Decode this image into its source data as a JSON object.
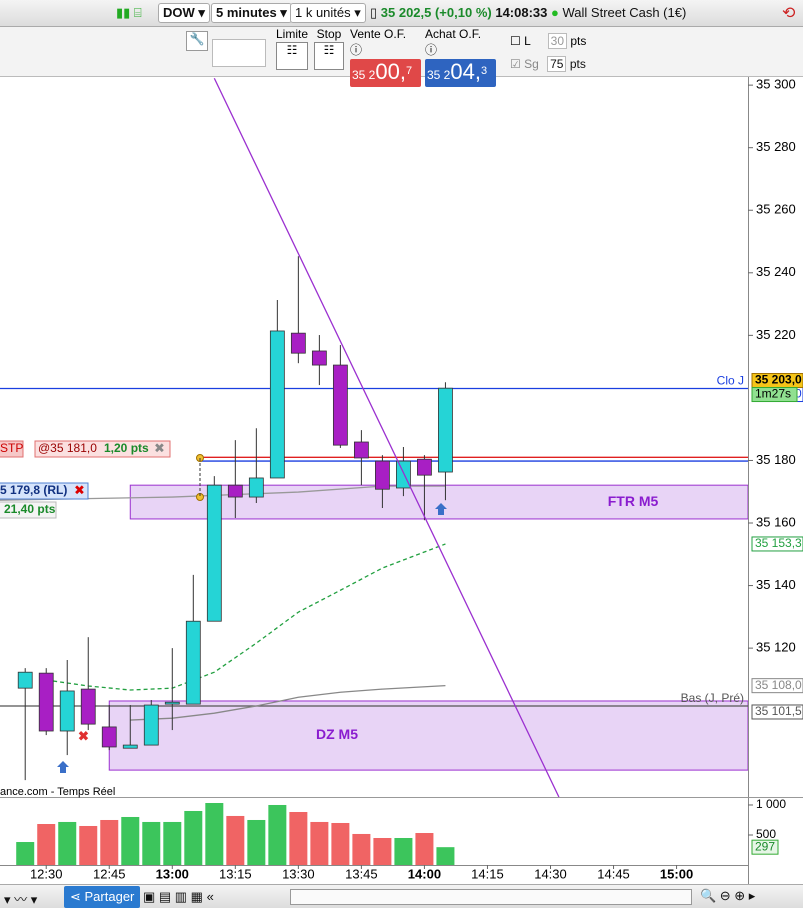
{
  "toolbar": {
    "instrument": "DOW",
    "timeframe": "5 minutes",
    "quantity": "1 k unités",
    "price": "35 202,5 (+0,10 %)",
    "time": "14:08:33",
    "market": "Wall Street Cash (1€)"
  },
  "order_panel": {
    "limit": "Limite",
    "stop": "Stop",
    "sell_label": "Vente O.F.",
    "sell_prefix": "35 2",
    "sell_main": "00,",
    "sell_sup": "7",
    "buy_label": "Achat O.F.",
    "buy_prefix": "35 2",
    "buy_main": "04,",
    "buy_sup": "3",
    "l_label": "L",
    "l_value": "30",
    "l_unit": "pts",
    "sg_label": "Sg",
    "sg_value": "75",
    "sg_unit": "pts"
  },
  "source": "ance.com - Temps Réel",
  "bottom_toolbar": {
    "share": "Partager"
  },
  "chart_data": {
    "type": "candlestick",
    "x": [
      "12:25",
      "12:30",
      "12:35",
      "12:40",
      "12:45",
      "12:50",
      "12:55",
      "13:00",
      "13:05",
      "13:10",
      "13:15",
      "13:20",
      "13:25",
      "13:30",
      "13:35",
      "13:40",
      "13:45",
      "13:50",
      "13:55",
      "14:00",
      "14:05"
    ],
    "open": [
      35107.2,
      35112.0,
      35093.5,
      35106.9,
      35094.8,
      35088.0,
      35089.0,
      35102.1,
      35102.1,
      35128.6,
      35172.1,
      35168.3,
      35174.4,
      35220.7,
      35215.0,
      35210.5,
      35185.9,
      35179.8,
      35171.2,
      35180.4,
      35176.3
    ],
    "high": [
      35113.6,
      35113.6,
      35116.2,
      35123.5,
      35101.8,
      35101.8,
      35103.4,
      35120.0,
      35143.4,
      35175.0,
      35186.5,
      35190.3,
      35231.3,
      35245.3,
      35220.1,
      35216.9,
      35189.7,
      35181.7,
      35184.3,
      35181.7,
      35205.0
    ],
    "low": [
      35077.8,
      35092.2,
      35085.8,
      35093.8,
      35087.4,
      35088.0,
      35089.0,
      35093.8,
      35102.1,
      35128.6,
      35161.6,
      35166.4,
      35174.4,
      35211.1,
      35204.1,
      35184.0,
      35172.1,
      35164.8,
      35168.6,
      35160.9,
      35167.3
    ],
    "close": [
      35112.3,
      35093.5,
      35106.3,
      35095.7,
      35088.4,
      35089.0,
      35101.8,
      35102.7,
      35128.6,
      35172.1,
      35168.3,
      35174.4,
      35221.4,
      35214.3,
      35210.5,
      35184.9,
      35180.8,
      35170.8,
      35179.8,
      35175.3,
      35203.1
    ],
    "up_color": "#25d4d6",
    "down_color": "#a81fc4",
    "xlim": [
      "12:19",
      "15:17"
    ],
    "xticks": [
      "12:30",
      "12:45",
      "13:00",
      "13:15",
      "13:30",
      "13:45",
      "14:00",
      "14:15",
      "14:30",
      "14:45",
      "15:00"
    ],
    "ylim": [
      35072.4,
      35302.6
    ],
    "yticks": [
      {
        "value": 35120,
        "label": "35 120"
      },
      {
        "value": 35140,
        "label": "35 140"
      },
      {
        "value": 35160,
        "label": "35 160"
      },
      {
        "value": 35180,
        "label": "35 180"
      },
      {
        "value": 35220,
        "label": "35 220"
      },
      {
        "value": 35240,
        "label": "35 240"
      },
      {
        "value": 35260,
        "label": "35 260"
      },
      {
        "value": 35280,
        "label": "35 280"
      },
      {
        "value": 35300,
        "label": "35 300"
      }
    ],
    "last_price": {
      "value": 35203.0,
      "label": "35 203,0"
    },
    "countdown": "1m27s",
    "levels": [
      {
        "name": "Clo J",
        "value": 35203.0,
        "label": "35 203,0",
        "color": "#1a3fe0"
      },
      {
        "name": "Bas (J, Pré)",
        "value": 35101.5,
        "label": "35 101,5",
        "color": "#555555"
      }
    ],
    "orders": [
      {
        "type": "STP",
        "value": 35181.0,
        "label": "@35 181,0",
        "distance": "1,20 pts",
        "color": "#e02020"
      },
      {
        "value": 35179.8,
        "label": "5 179,8 (RL)",
        "distance": "21,40 pts",
        "color": "#1a3fe0"
      }
    ],
    "zones": [
      {
        "name": "FTR M5",
        "start": "12:50",
        "top": 35172.1,
        "bottom": 35161.3
      },
      {
        "name": "DZ M5",
        "start": "12:45",
        "top": 35103.1,
        "bottom": 35081.0
      }
    ],
    "moving_averages": [
      {
        "color": "#22a040",
        "dashed": true,
        "x": [
          "12:30",
          "12:40",
          "12:50",
          "13:00",
          "13:10",
          "13:20",
          "13:30",
          "13:40",
          "13:50",
          "14:05"
        ],
        "values": [
          35109.8,
          35107.9,
          35106.6,
          35107.2,
          35112.3,
          35121.6,
          35131.5,
          35138.5,
          35145.6,
          35153.3
        ],
        "label": "35 153,3"
      },
      {
        "color": "#888888",
        "dashed": false,
        "x": [
          "12:50",
          "13:00",
          "13:10",
          "13:20",
          "13:30",
          "13:40",
          "13:50",
          "14:05"
        ],
        "values": [
          35097.0,
          35097.6,
          35099.2,
          35101.5,
          35104.3,
          35105.9,
          35106.9,
          35108.0
        ],
        "label": "35 108,0"
      },
      {
        "color": "#999999",
        "dashed": false,
        "x": [
          "12:19",
          "13:00",
          "13:30",
          "13:50",
          "14:05"
        ],
        "values": [
          35167.3,
          35168.3,
          35169.9,
          35171.8,
          35171.8
        ]
      }
    ],
    "trendline": {
      "color": "#9b30d0",
      "x": [
        "13:10",
        "14:32"
      ],
      "values": [
        35302.2,
        35072.4
      ]
    },
    "volume": {
      "values": [
        383,
        683,
        717,
        650,
        750,
        800,
        717,
        717,
        900,
        1033,
        817,
        750,
        1000,
        883,
        717,
        700,
        517,
        450,
        450,
        533,
        297
      ],
      "ylim": [
        0,
        1133
      ],
      "yticks": [
        {
          "value": 1000,
          "label": "1 000"
        },
        500
      ],
      "up_color": "#3cc55c",
      "down_color": "#f06464"
    }
  }
}
